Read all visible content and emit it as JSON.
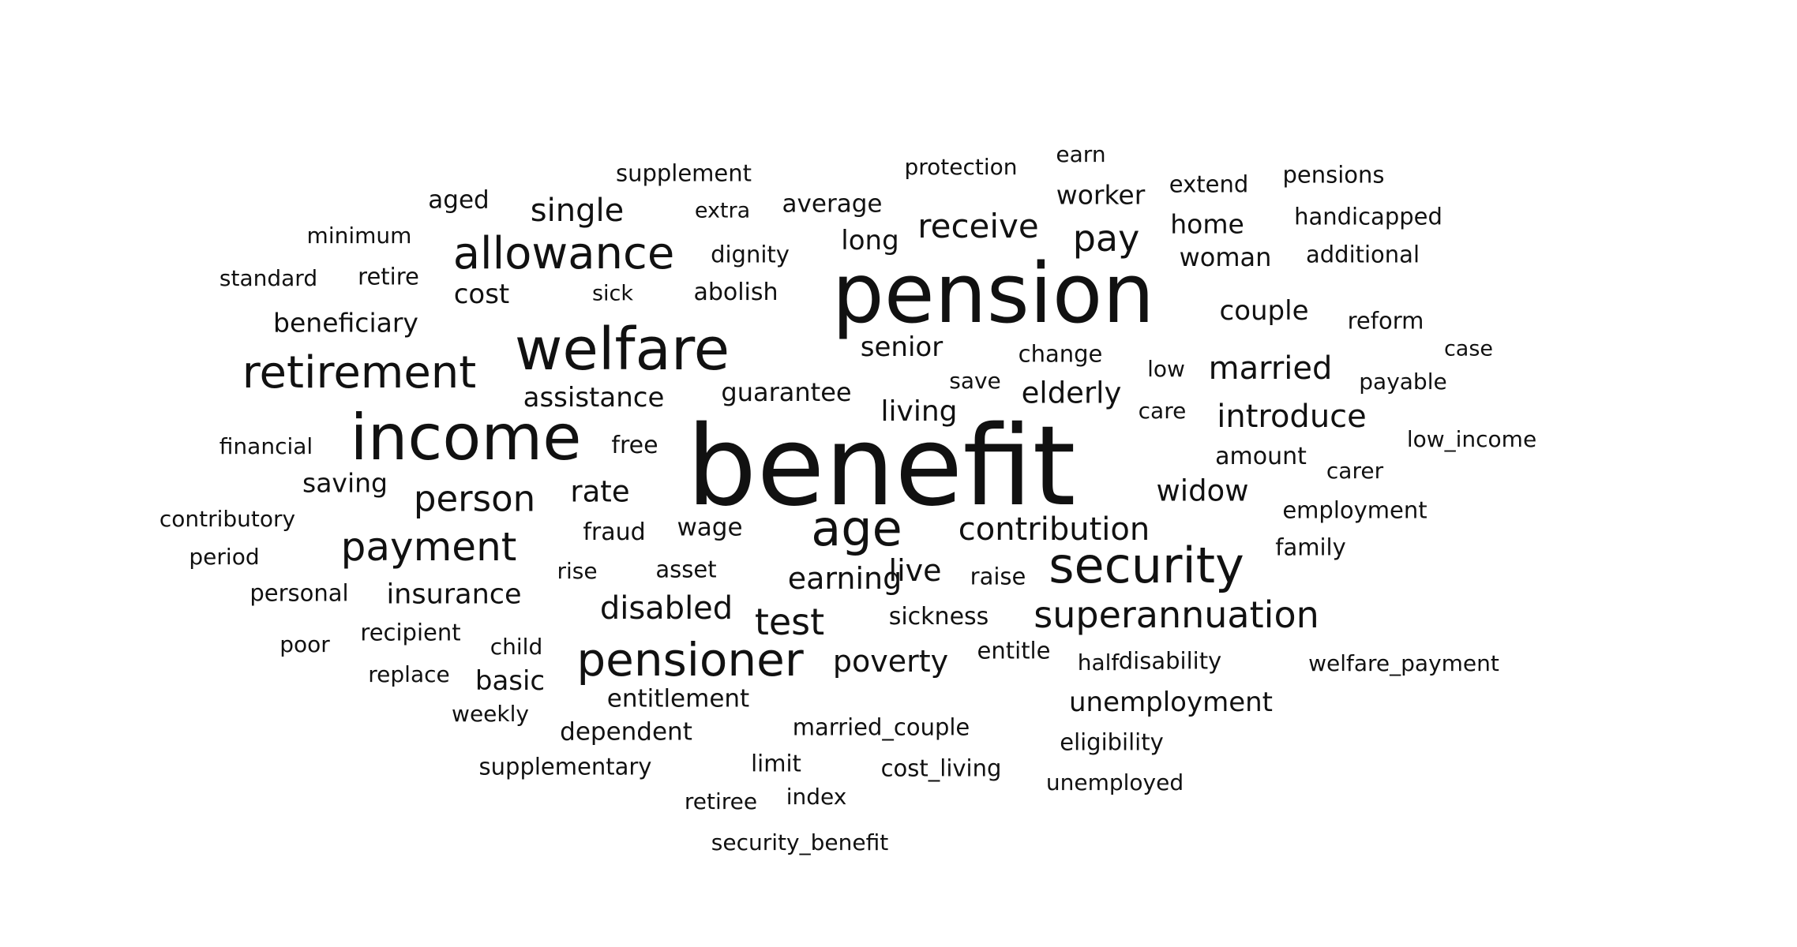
{
  "words": [
    {
      "text": "benefit",
      "weight": 1.0
    },
    {
      "text": "pension",
      "weight": 0.86
    },
    {
      "text": "income",
      "weight": 0.72
    },
    {
      "text": "welfare",
      "weight": 0.68
    },
    {
      "text": "security",
      "weight": 0.55
    },
    {
      "text": "age",
      "weight": 0.55
    },
    {
      "text": "pensioner",
      "weight": 0.52
    },
    {
      "text": "retirement",
      "weight": 0.52
    },
    {
      "text": "allowance",
      "weight": 0.5
    },
    {
      "text": "payment",
      "weight": 0.46
    },
    {
      "text": "superannuation",
      "weight": 0.42
    },
    {
      "text": "test",
      "weight": 0.42
    },
    {
      "text": "person",
      "weight": 0.4
    },
    {
      "text": "pay",
      "weight": 0.42
    },
    {
      "text": "receive",
      "weight": 0.38
    },
    {
      "text": "disabled",
      "weight": 0.36
    },
    {
      "text": "contribution",
      "weight": 0.36
    },
    {
      "text": "introduce",
      "weight": 0.36
    },
    {
      "text": "married",
      "weight": 0.36
    },
    {
      "text": "single",
      "weight": 0.35
    },
    {
      "text": "earning",
      "weight": 0.34
    },
    {
      "text": "poverty",
      "weight": 0.33
    },
    {
      "text": "rate",
      "weight": 0.33
    },
    {
      "text": "live",
      "weight": 0.33
    },
    {
      "text": "widow",
      "weight": 0.32
    },
    {
      "text": "elderly",
      "weight": 0.32
    },
    {
      "text": "insurance",
      "weight": 0.31
    },
    {
      "text": "living",
      "weight": 0.31
    },
    {
      "text": "assistance",
      "weight": 0.3
    },
    {
      "text": "senior",
      "weight": 0.3
    },
    {
      "text": "couple",
      "weight": 0.28
    },
    {
      "text": "unemployment",
      "weight": 0.3
    },
    {
      "text": "basic",
      "weight": 0.29
    },
    {
      "text": "cost",
      "weight": 0.29
    },
    {
      "text": "long",
      "weight": 0.3
    },
    {
      "text": "home",
      "weight": 0.28
    },
    {
      "text": "worker",
      "weight": 0.28
    },
    {
      "text": "beneficiary",
      "weight": 0.28
    },
    {
      "text": "saving",
      "weight": 0.28
    },
    {
      "text": "guarantee",
      "weight": 0.28
    },
    {
      "text": "woman",
      "weight": 0.28
    },
    {
      "text": "entitlement",
      "weight": 0.27
    },
    {
      "text": "dependent",
      "weight": 0.27
    },
    {
      "text": "average",
      "weight": 0.27
    },
    {
      "text": "aged",
      "weight": 0.27
    },
    {
      "text": "wage",
      "weight": 0.27
    },
    {
      "text": "fraud",
      "weight": 0.26
    },
    {
      "text": "free",
      "weight": 0.26
    },
    {
      "text": "amount",
      "weight": 0.26
    },
    {
      "text": "sickness",
      "weight": 0.26
    },
    {
      "text": "abolish",
      "weight": 0.26
    },
    {
      "text": "dignity",
      "weight": 0.25
    },
    {
      "text": "retire",
      "weight": 0.25
    },
    {
      "text": "change",
      "weight": 0.25
    },
    {
      "text": "limit",
      "weight": 0.25
    },
    {
      "text": "raise",
      "weight": 0.25
    },
    {
      "text": "supplement",
      "weight": 0.25
    },
    {
      "text": "handicapped",
      "weight": 0.25
    },
    {
      "text": "additional",
      "weight": 0.25
    },
    {
      "text": "extend",
      "weight": 0.25
    },
    {
      "text": "reform",
      "weight": 0.25
    },
    {
      "text": "entitle",
      "weight": 0.25
    },
    {
      "text": "disability",
      "weight": 0.25
    },
    {
      "text": "eligibility",
      "weight": 0.25
    },
    {
      "text": "employment",
      "weight": 0.24
    },
    {
      "text": "family",
      "weight": 0.24
    },
    {
      "text": "married_couple",
      "weight": 0.24
    },
    {
      "text": "pensions",
      "weight": 0.24
    },
    {
      "text": "personal",
      "weight": 0.24
    },
    {
      "text": "recipient",
      "weight": 0.24
    },
    {
      "text": "asset",
      "weight": 0.24
    },
    {
      "text": "cost_living",
      "weight": 0.24
    },
    {
      "text": "supplementary",
      "weight": 0.24
    },
    {
      "text": "low_income",
      "weight": 0.24
    },
    {
      "text": "contributory",
      "weight": 0.24
    },
    {
      "text": "unemployed",
      "weight": 0.23
    },
    {
      "text": "child",
      "weight": 0.23
    },
    {
      "text": "financial",
      "weight": 0.23
    },
    {
      "text": "standard",
      "weight": 0.23
    },
    {
      "text": "minimum",
      "weight": 0.23
    },
    {
      "text": "period",
      "weight": 0.23
    },
    {
      "text": "welfare_payment",
      "weight": 0.23
    },
    {
      "text": "weekly",
      "weight": 0.23
    },
    {
      "text": "poor",
      "weight": 0.23
    },
    {
      "text": "replace",
      "weight": 0.23
    },
    {
      "text": "retiree",
      "weight": 0.23
    },
    {
      "text": "index",
      "weight": 0.23
    },
    {
      "text": "half",
      "weight": 0.23
    },
    {
      "text": "care",
      "weight": 0.23
    },
    {
      "text": "low",
      "weight": 0.23
    },
    {
      "text": "save",
      "weight": 0.23
    },
    {
      "text": "carer",
      "weight": 0.23
    },
    {
      "text": "rise",
      "weight": 0.23
    },
    {
      "text": "protection",
      "weight": 0.23
    },
    {
      "text": "payable",
      "weight": 0.23
    },
    {
      "text": "extra",
      "weight": 0.22
    },
    {
      "text": "earn",
      "weight": 0.23
    },
    {
      "text": "sick",
      "weight": 0.22
    },
    {
      "text": "case",
      "weight": 0.22
    },
    {
      "text": "security_benefit",
      "weight": 0.23
    }
  ]
}
